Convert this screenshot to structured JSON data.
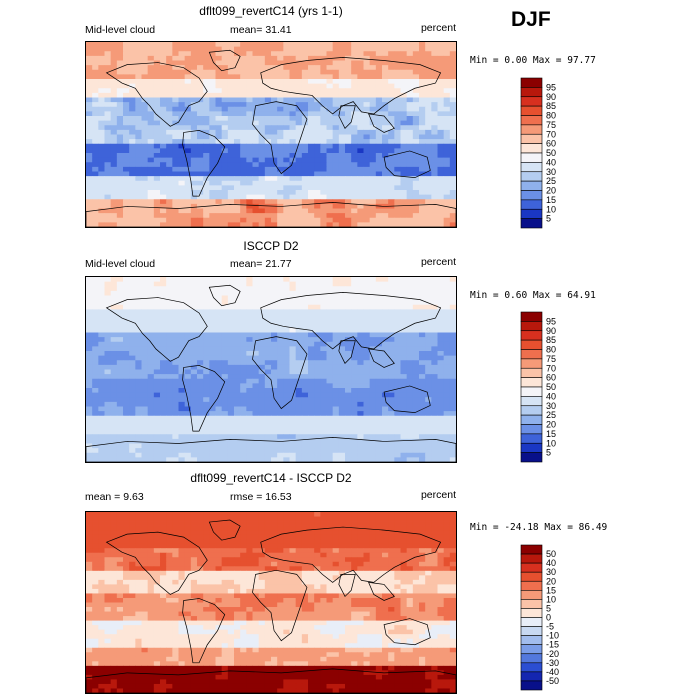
{
  "season": "DJF",
  "panels": [
    {
      "id": "model",
      "title": "dflt099_revertC14 (yrs 1-1)",
      "left_label": "Mid-level cloud",
      "center_label": "mean=  31.41",
      "right_label": "percent",
      "minmax": "Min =   0.00 Max =  97.77",
      "colorbar": {
        "labels": [
          "95",
          "90",
          "85",
          "80",
          "75",
          "70",
          "60",
          "50",
          "40",
          "30",
          "25",
          "20",
          "15",
          "10",
          "5"
        ],
        "colors": [
          "#8b0000",
          "#b8180c",
          "#d7301f",
          "#e6502f",
          "#ef6f4e",
          "#f59a78",
          "#fbc3a8",
          "#fde6d8",
          "#f4f4f8",
          "#d6e4f5",
          "#b4cdf0",
          "#8fb1ec",
          "#6b90e6",
          "#3e63d9",
          "#1a37c4",
          "#08108a"
        ]
      },
      "field": "model"
    },
    {
      "id": "obs",
      "title": "ISCCP D2",
      "left_label": "Mid-level cloud",
      "center_label": "mean=  21.77",
      "right_label": "percent",
      "minmax": "Min =   0.60 Max =  64.91",
      "colorbar": {
        "labels": [
          "95",
          "90",
          "85",
          "80",
          "75",
          "70",
          "60",
          "50",
          "40",
          "30",
          "25",
          "20",
          "15",
          "10",
          "5"
        ],
        "colors": [
          "#8b0000",
          "#b8180c",
          "#d7301f",
          "#e6502f",
          "#ef6f4e",
          "#f59a78",
          "#fbc3a8",
          "#fde6d8",
          "#f4f4f8",
          "#d6e4f5",
          "#b4cdf0",
          "#8fb1ec",
          "#6b90e6",
          "#3e63d9",
          "#1a37c4",
          "#08108a"
        ]
      },
      "field": "obs"
    },
    {
      "id": "diff",
      "title": "dflt099_revertC14 - ISCCP D2",
      "left_label": "mean =   9.63",
      "center_label": "rmse =  16.53",
      "right_label": "percent",
      "minmax": "Min = -24.18 Max =  86.49",
      "colorbar": {
        "labels": [
          "50",
          "40",
          "30",
          "20",
          "15",
          "10",
          "5",
          "0",
          "-5",
          "-10",
          "-15",
          "-20",
          "-30",
          "-40",
          "-50"
        ],
        "colors": [
          "#8b0000",
          "#b8180c",
          "#d7301f",
          "#e6502f",
          "#ef6f4e",
          "#f59a78",
          "#fbc3a8",
          "#fde6d8",
          "#e8eef8",
          "#c8d9f2",
          "#a2bdee",
          "#7b9de8",
          "#5378dd",
          "#2b4ed2",
          "#1426b0",
          "#08108a"
        ]
      },
      "field": "diff"
    }
  ]
}
